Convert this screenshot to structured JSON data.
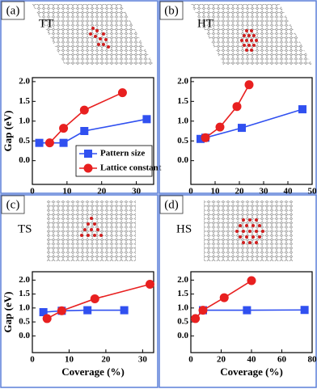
{
  "chart_data": [
    {
      "type": "line",
      "panel": "(a)",
      "name": "TT",
      "ylabel": "Gap (eV)",
      "xlim": [
        0,
        35
      ],
      "xticks": [
        0,
        10,
        20,
        30
      ],
      "ylim": [
        -0.6,
        2.1
      ],
      "yticks": [
        {
          "value": 0,
          "label": "0.0"
        },
        0.5,
        {
          "value": 1,
          "label": "1.0"
        },
        1.5,
        {
          "value": 2,
          "label": "2.0"
        }
      ],
      "legend": "lower right",
      "series": [
        {
          "name": "Pattern size",
          "color": "#3050f0",
          "marker": "square",
          "x": [
            2,
            9,
            15,
            33
          ],
          "values": [
            0.45,
            0.45,
            0.75,
            1.05
          ]
        },
        {
          "name": "Lattice constant",
          "color": "#e82020",
          "marker": "circle",
          "x": [
            5,
            9,
            15,
            26
          ],
          "values": [
            0.45,
            0.82,
            1.28,
            1.72
          ]
        }
      ]
    },
    {
      "type": "line",
      "panel": "(b)",
      "name": "HT",
      "xlim": [
        0,
        50
      ],
      "xticks": [
        0,
        10,
        20,
        30,
        40,
        50
      ],
      "ylim": [
        -0.6,
        2.1
      ],
      "yticks": [
        {
          "value": 0,
          "label": "0.0"
        },
        0.5,
        {
          "value": 1,
          "label": "1.0"
        },
        1.5,
        {
          "value": 2,
          "label": "2.0"
        }
      ],
      "series": [
        {
          "color": "#3050f0",
          "marker": "square",
          "x": [
            4,
            6,
            21,
            46
          ],
          "values": [
            0.55,
            0.58,
            0.83,
            1.3
          ]
        },
        {
          "color": "#e82020",
          "marker": "circle",
          "x": [
            6,
            12,
            19,
            24
          ],
          "values": [
            0.58,
            0.85,
            1.37,
            1.92
          ]
        }
      ]
    },
    {
      "type": "line",
      "panel": "(c)",
      "name": "TS",
      "ylabel": "Gap (eV)",
      "xlabel": "Coverage (%)",
      "xlim": [
        0,
        33
      ],
      "xticks": [
        0,
        10,
        20,
        30
      ],
      "ylim": [
        -0.6,
        2.3
      ],
      "yticks": [
        {
          "value": 0,
          "label": "0.0"
        },
        0.5,
        {
          "value": 1,
          "label": "1.0"
        },
        1.5,
        {
          "value": 2,
          "label": "2.0"
        }
      ],
      "series": [
        {
          "color": "#3050f0",
          "marker": "square",
          "x": [
            3,
            8,
            15,
            25
          ],
          "values": [
            0.85,
            0.9,
            0.92,
            0.92
          ]
        },
        {
          "color": "#e82020",
          "marker": "circle",
          "x": [
            4,
            8,
            17,
            32
          ],
          "values": [
            0.62,
            0.9,
            1.33,
            1.85
          ]
        }
      ]
    },
    {
      "type": "line",
      "panel": "(d)",
      "name": "HS",
      "xlabel": "Coverage (%)",
      "xlim": [
        0,
        80
      ],
      "xticks": [
        0,
        20,
        40,
        60,
        80
      ],
      "ylim": [
        -0.6,
        2.3
      ],
      "yticks": [
        {
          "value": 0,
          "label": "0.0"
        },
        0.5,
        {
          "value": 1,
          "label": "1.0"
        },
        1.5,
        {
          "value": 2,
          "label": "2.0"
        }
      ],
      "series": [
        {
          "color": "#3050f0",
          "marker": "square",
          "x": [
            8,
            37,
            75
          ],
          "values": [
            0.92,
            0.92,
            0.93
          ]
        },
        {
          "color": "#e82020",
          "marker": "circle",
          "x": [
            3,
            8,
            22,
            40
          ],
          "values": [
            0.62,
            0.92,
            1.37,
            1.98
          ]
        }
      ]
    }
  ]
}
